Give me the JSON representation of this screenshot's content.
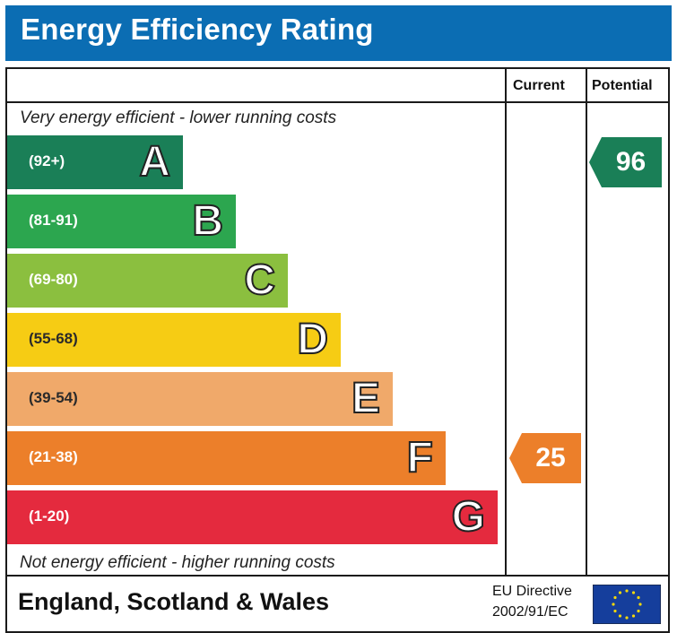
{
  "header": {
    "title": "Energy Efficiency Rating"
  },
  "columns": {
    "current": "Current",
    "potential": "Potential"
  },
  "captions": {
    "top": "Very energy efficient - lower running costs",
    "bottom": "Not energy efficient - higher running costs"
  },
  "footer": {
    "region": "England, Scotland & Wales",
    "directive_line1": "EU Directive",
    "directive_line2": "2002/91/EC"
  },
  "colors": {
    "A": "#1a7f57",
    "B": "#2ca64f",
    "C": "#8bbf3f",
    "D": "#f6cc14",
    "E": "#f0a96a",
    "F": "#ec7f2a",
    "G": "#e42a3e",
    "title_bar": "#0b6db3",
    "eu_flag": "#153e9c",
    "eu_stars": "#f5d90a"
  },
  "chart_data": {
    "type": "bar",
    "bands": [
      {
        "letter": "A",
        "range": "(92+)"
      },
      {
        "letter": "B",
        "range": "(81-91)"
      },
      {
        "letter": "C",
        "range": "(69-80)"
      },
      {
        "letter": "D",
        "range": "(55-68)"
      },
      {
        "letter": "E",
        "range": "(39-54)"
      },
      {
        "letter": "F",
        "range": "(21-38)"
      },
      {
        "letter": "G",
        "range": "(1-20)"
      }
    ],
    "current": {
      "value": "25",
      "band": "F"
    },
    "potential": {
      "value": "96",
      "band": "A"
    }
  }
}
